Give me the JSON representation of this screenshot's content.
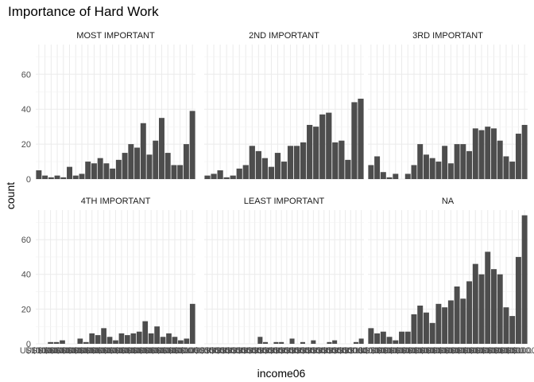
{
  "chart_data": {
    "type": "bar",
    "title": "Importance of Hard Work",
    "xlabel": "income06",
    "ylabel": "count",
    "ylim": [
      0,
      77
    ],
    "y_ticks": [
      0,
      20,
      40,
      60
    ],
    "x_tick_labels_overlapping": "U$1000...",
    "bar_color": "#4d4d4d",
    "grid": true,
    "facets": [
      {
        "label": "MOST IMPORTANT",
        "values": [
          5,
          2,
          1,
          2,
          1,
          7,
          2,
          3,
          10,
          9,
          12,
          9,
          6,
          11,
          15,
          20,
          18,
          32,
          14,
          22,
          35,
          15,
          8,
          8,
          20,
          39
        ]
      },
      {
        "label": "2ND IMPORTANT",
        "values": [
          2,
          3,
          5,
          1,
          2,
          6,
          8,
          19,
          16,
          12,
          7,
          15,
          10,
          19,
          19,
          21,
          31,
          30,
          37,
          38,
          21,
          22,
          11,
          44,
          46
        ]
      },
      {
        "label": "3RD IMPORTANT",
        "values": [
          8,
          13,
          4,
          1,
          3,
          0,
          3,
          8,
          20,
          14,
          12,
          10,
          19,
          9,
          20,
          20,
          16,
          29,
          28,
          30,
          29,
          22,
          13,
          10,
          26,
          31
        ]
      },
      {
        "label": "4TH IMPORTANT",
        "values": [
          0,
          0,
          1,
          1,
          2,
          0,
          0,
          3,
          1,
          6,
          5,
          9,
          4,
          2,
          6,
          5,
          6,
          7,
          13,
          6,
          10,
          4,
          6,
          4,
          2,
          3,
          23
        ]
      },
      {
        "label": "LEAST IMPORTANT",
        "values": [
          0,
          0,
          0,
          0,
          0,
          0,
          0,
          0,
          0,
          0,
          4,
          1,
          0,
          1,
          1,
          0,
          3,
          0,
          1,
          0,
          2,
          0,
          0,
          1,
          2,
          0,
          0,
          0,
          1,
          3
        ]
      },
      {
        "label": "NA",
        "values": [
          9,
          6,
          7,
          4,
          2,
          7,
          7,
          17,
          22,
          18,
          12,
          23,
          21,
          25,
          33,
          26,
          36,
          46,
          40,
          53,
          43,
          40,
          21,
          16,
          50,
          74
        ]
      }
    ]
  }
}
